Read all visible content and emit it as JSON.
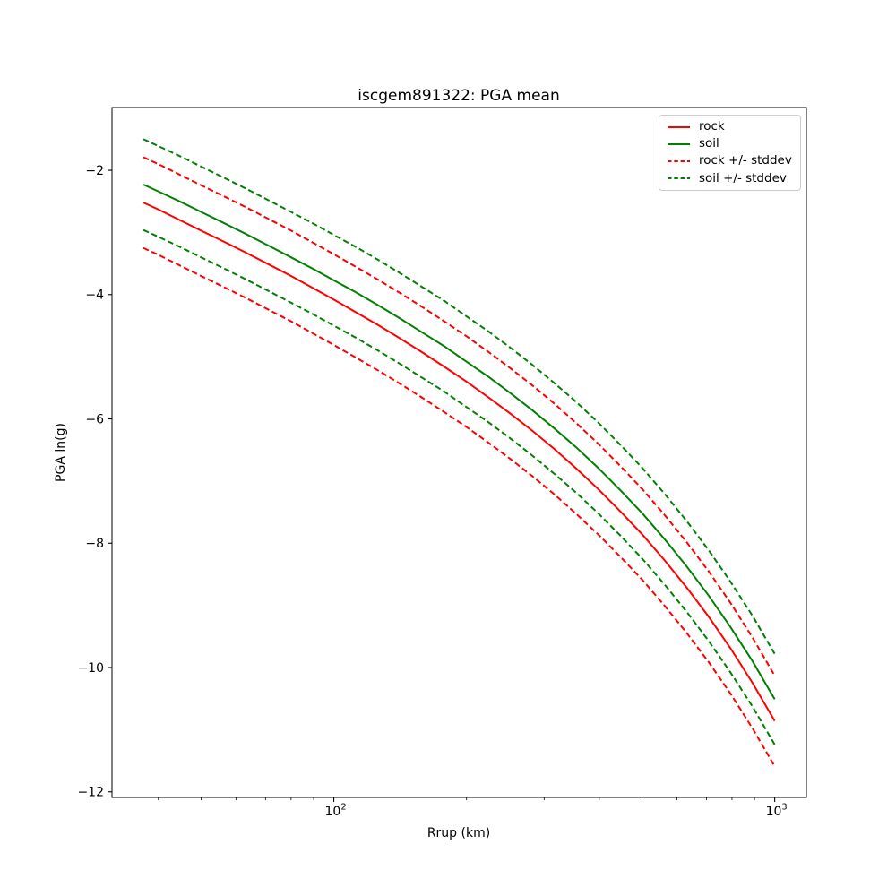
{
  "chart_data": {
    "type": "line",
    "title": "iscgem891322: PGA mean",
    "xlabel": "Rrup (km)",
    "ylabel": "PGA ln(g)",
    "x_scale": "log",
    "y_scale": "linear",
    "grid": false,
    "xlim": [
      31.4,
      1180
    ],
    "ylim": [
      -12.09,
      -0.99
    ],
    "x_ticks_major": [
      {
        "value": 100,
        "label": "10^2",
        "base": "10",
        "exp": "2"
      },
      {
        "value": 1000,
        "label": "10^3",
        "base": "10",
        "exp": "3"
      }
    ],
    "x_ticks_minor": [
      40,
      50,
      60,
      70,
      80,
      90,
      200,
      300,
      400,
      500,
      600,
      700,
      800,
      900
    ],
    "y_ticks": [
      {
        "value": -2,
        "label": "−2"
      },
      {
        "value": -4,
        "label": "−4"
      },
      {
        "value": -6,
        "label": "−6"
      },
      {
        "value": -8,
        "label": "−8"
      },
      {
        "value": -10,
        "label": "−10"
      },
      {
        "value": -12,
        "label": "−12"
      }
    ],
    "stddev": 0.73,
    "colors": {
      "rock": "#ff0000",
      "soil": "#008000"
    },
    "x": [
      37,
      40,
      45,
      50,
      56,
      63,
      71,
      80,
      90,
      100,
      112,
      126,
      141,
      158,
      178,
      200,
      224,
      251,
      282,
      316,
      355,
      398,
      447,
      501,
      562,
      631,
      708,
      794,
      891,
      1000
    ],
    "series": [
      {
        "id": "rock",
        "name": "rock",
        "color": "#ff0000",
        "style": "solid",
        "values": [
          -2.52,
          -2.63,
          -2.81,
          -2.97,
          -3.14,
          -3.32,
          -3.51,
          -3.7,
          -3.9,
          -4.08,
          -4.28,
          -4.49,
          -4.7,
          -4.92,
          -5.16,
          -5.4,
          -5.65,
          -5.91,
          -6.19,
          -6.48,
          -6.8,
          -7.13,
          -7.49,
          -7.86,
          -8.27,
          -8.71,
          -9.18,
          -9.69,
          -10.25,
          -10.86
        ]
      },
      {
        "id": "soil",
        "name": "soil",
        "color": "#008000",
        "style": "solid",
        "values": [
          -2.23,
          -2.34,
          -2.51,
          -2.67,
          -2.84,
          -3.02,
          -3.21,
          -3.4,
          -3.59,
          -3.77,
          -3.96,
          -4.17,
          -4.38,
          -4.6,
          -4.83,
          -5.08,
          -5.32,
          -5.58,
          -5.86,
          -6.15,
          -6.46,
          -6.79,
          -7.15,
          -7.52,
          -7.93,
          -8.37,
          -8.84,
          -9.35,
          -9.9,
          -10.51
        ]
      },
      {
        "id": "rock-stddev",
        "name": "rock +/- stddev",
        "color": "#ff0000",
        "style": "dashed",
        "upper": [
          -1.79,
          -1.9,
          -2.08,
          -2.24,
          -2.41,
          -2.59,
          -2.78,
          -2.97,
          -3.17,
          -3.35,
          -3.55,
          -3.76,
          -3.97,
          -4.19,
          -4.43,
          -4.67,
          -4.92,
          -5.18,
          -5.46,
          -5.75,
          -6.07,
          -6.4,
          -6.76,
          -7.13,
          -7.54,
          -7.98,
          -8.45,
          -8.96,
          -9.52,
          -10.13
        ],
        "lower": [
          -3.25,
          -3.36,
          -3.54,
          -3.7,
          -3.87,
          -4.05,
          -4.24,
          -4.43,
          -4.63,
          -4.81,
          -5.01,
          -5.22,
          -5.43,
          -5.65,
          -5.89,
          -6.13,
          -6.38,
          -6.64,
          -6.92,
          -7.21,
          -7.53,
          -7.86,
          -8.22,
          -8.59,
          -9.0,
          -9.44,
          -9.91,
          -10.42,
          -10.98,
          -11.59
        ]
      },
      {
        "id": "soil-stddev",
        "name": "soil +/- stddev",
        "color": "#008000",
        "style": "dashed",
        "upper": [
          -1.5,
          -1.61,
          -1.78,
          -1.94,
          -2.11,
          -2.29,
          -2.48,
          -2.67,
          -2.86,
          -3.04,
          -3.23,
          -3.44,
          -3.65,
          -3.87,
          -4.1,
          -4.35,
          -4.59,
          -4.85,
          -5.13,
          -5.42,
          -5.73,
          -6.06,
          -6.42,
          -6.79,
          -7.2,
          -7.64,
          -8.11,
          -8.62,
          -9.17,
          -9.78
        ],
        "lower": [
          -2.96,
          -3.07,
          -3.24,
          -3.4,
          -3.57,
          -3.75,
          -3.94,
          -4.13,
          -4.32,
          -4.5,
          -4.69,
          -4.9,
          -5.11,
          -5.33,
          -5.56,
          -5.81,
          -6.05,
          -6.31,
          -6.59,
          -6.88,
          -7.19,
          -7.52,
          -7.88,
          -8.25,
          -8.66,
          -9.1,
          -9.57,
          -10.08,
          -10.63,
          -11.24
        ]
      }
    ],
    "legend": [
      {
        "id": "rock",
        "label": "rock",
        "color": "#ff0000",
        "style": "solid"
      },
      {
        "id": "soil",
        "label": "soil",
        "color": "#008000",
        "style": "solid"
      },
      {
        "id": "rock-stddev",
        "label": "rock +/- stddev",
        "color": "#ff0000",
        "style": "dashed"
      },
      {
        "id": "soil-stddev",
        "label": "soil +/- stddev",
        "color": "#008000",
        "style": "dashed"
      }
    ],
    "legend_position": "upper right"
  }
}
